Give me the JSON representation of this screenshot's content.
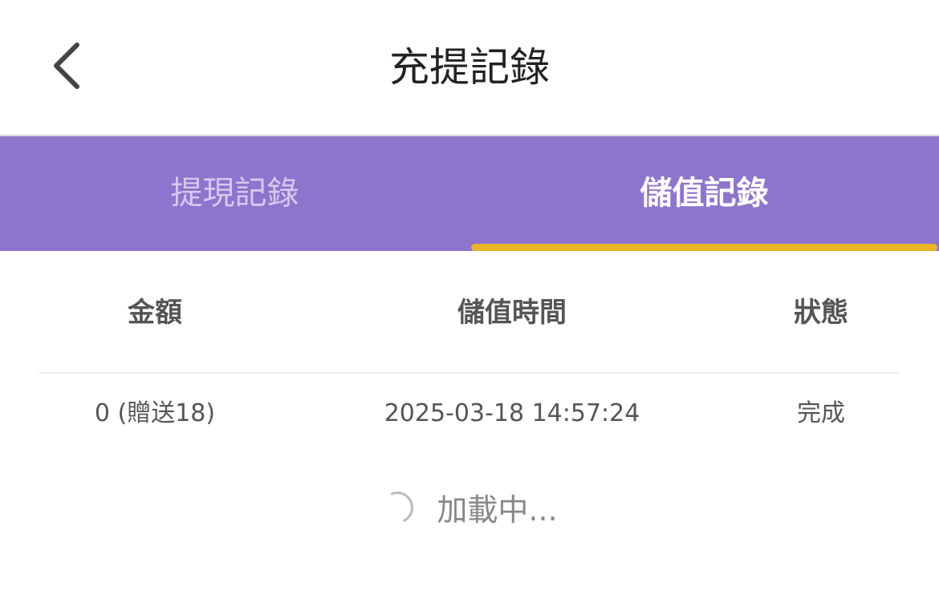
{
  "header": {
    "title": "充提記錄",
    "back_icon": "chevron-left-icon"
  },
  "tabs": [
    {
      "label": "提現記錄",
      "active": false
    },
    {
      "label": "儲值記錄",
      "active": true
    }
  ],
  "colors": {
    "tab_bar": "#8e74cd",
    "indicator": "#e9b425"
  },
  "table": {
    "columns": [
      "金額",
      "儲值時間",
      "狀態"
    ],
    "rows": [
      {
        "amount": "0 (贈送18)",
        "time": "2025-03-18 14:57:24",
        "status": "完成"
      }
    ]
  },
  "loading": {
    "text": "加載中..."
  }
}
